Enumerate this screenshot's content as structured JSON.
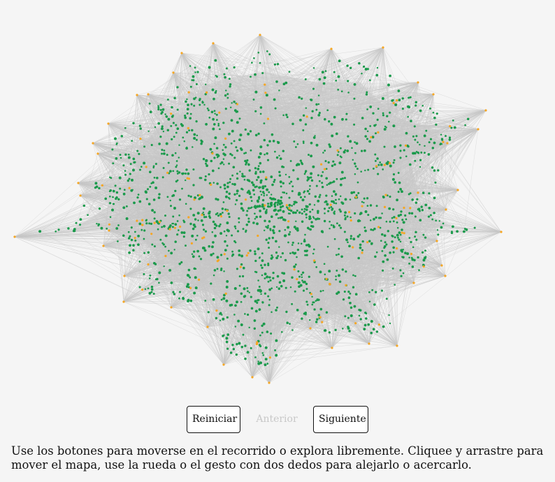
{
  "controls": {
    "reset_label": "Reiniciar",
    "prev_label": "Anterior",
    "next_label": "Siguiente"
  },
  "instructions": "Use los botones para moverse en el recorrido o explora libremente. Cliquee y arrastre para mover el mapa, use la rueda o el gesto con dos dedos para alejarlo o acercarlo.",
  "map": {
    "edge_color": "#c7c7c7",
    "node_colors": {
      "person": "#1a9a4b",
      "hub": "#f5a623"
    },
    "icons": {
      "person": "green-node-icon",
      "hub": "orange-node-icon"
    }
  }
}
